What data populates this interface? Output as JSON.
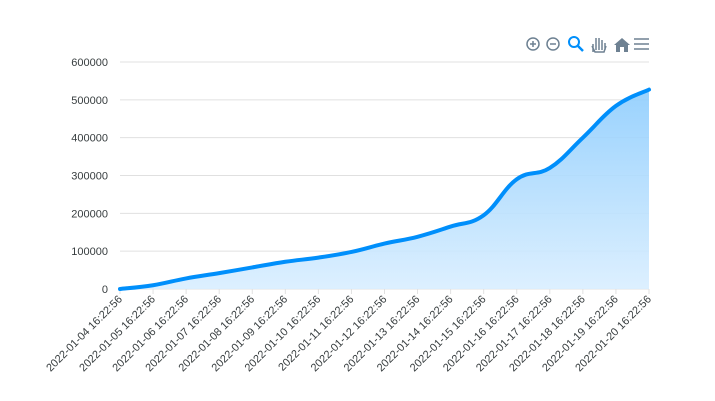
{
  "chart_data": {
    "type": "area",
    "x": [
      "2022-01-04 16:22:56",
      "2022-01-05 16:22:56",
      "2022-01-06 16:22:56",
      "2022-01-07 16:22:56",
      "2022-01-08 16:22:56",
      "2022-01-09 16:22:56",
      "2022-01-10 16:22:56",
      "2022-01-11 16:22:56",
      "2022-01-12 16:22:56",
      "2022-01-13 16:22:56",
      "2022-01-14 16:22:56",
      "2022-01-15 16:22:56",
      "2022-01-16 16:22:56",
      "2022-01-17 16:22:56",
      "2022-01-18 16:22:56",
      "2022-01-19 16:22:56",
      "2022-01-20 16:22:56"
    ],
    "values": [
      0,
      10000,
      28000,
      42000,
      57000,
      72000,
      83000,
      98000,
      120000,
      138000,
      165000,
      195000,
      290000,
      320000,
      400000,
      484000,
      527000
    ],
    "color": "#008ffb",
    "ylim": [
      0,
      600000
    ],
    "yticks": [
      0,
      100000,
      200000,
      300000,
      400000,
      500000,
      600000
    ],
    "grid": true
  }
}
